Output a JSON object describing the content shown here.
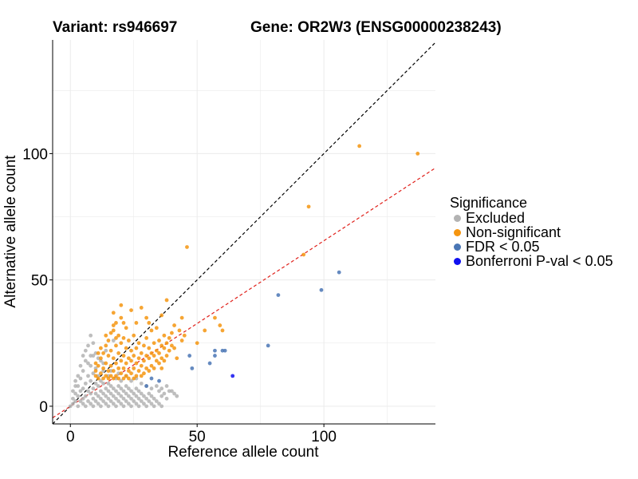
{
  "titles": {
    "variant": "Variant: rs946697",
    "gene": "Gene: OR2W3 (ENSG00000238243)"
  },
  "chart_data": {
    "type": "scatter",
    "xlabel": "Reference allele count",
    "ylabel": "Alternative allele count",
    "xlim": [
      -7,
      144
    ],
    "ylim": [
      -7,
      145
    ],
    "x_ticks": [
      0,
      50,
      100
    ],
    "y_ticks": [
      0,
      50,
      100
    ],
    "x_tick_labels": [
      "0",
      "50",
      "100"
    ],
    "y_tick_labels": [
      "0",
      "50",
      "100"
    ],
    "grid": true,
    "reference_lines": [
      {
        "name": "identity",
        "intercept": 0,
        "slope": 1.0,
        "color": "#000000",
        "dash": true
      },
      {
        "name": "fit",
        "intercept": 0,
        "slope": 0.655,
        "color": "#e0201a",
        "dash": true
      }
    ],
    "legend": {
      "title": "Significance",
      "position": "right",
      "entries": [
        {
          "label": "Excluded",
          "color": "#b3b3b3"
        },
        {
          "label": "Non-significant",
          "color": "#f5950f"
        },
        {
          "label": "FDR < 0.05",
          "color": "#4a76b5"
        },
        {
          "label": "Bonferroni P-val < 0.05",
          "color": "#1010f0"
        }
      ]
    },
    "series": [
      {
        "name": "Excluded",
        "color": "#b3b3b3",
        "points": [
          [
            0,
            0
          ],
          [
            1,
            1
          ],
          [
            1,
            3
          ],
          [
            2,
            2
          ],
          [
            2,
            5
          ],
          [
            3,
            0
          ],
          [
            3,
            4
          ],
          [
            3,
            8
          ],
          [
            4,
            2
          ],
          [
            4,
            6
          ],
          [
            4,
            11
          ],
          [
            5,
            1
          ],
          [
            5,
            3
          ],
          [
            5,
            7
          ],
          [
            5,
            14
          ],
          [
            6,
            0
          ],
          [
            6,
            4
          ],
          [
            6,
            9
          ],
          [
            6,
            18
          ],
          [
            7,
            2
          ],
          [
            7,
            6
          ],
          [
            7,
            12
          ],
          [
            7,
            24
          ],
          [
            8,
            1
          ],
          [
            8,
            5
          ],
          [
            8,
            10
          ],
          [
            8,
            16
          ],
          [
            8,
            28
          ],
          [
            9,
            0
          ],
          [
            9,
            3
          ],
          [
            9,
            7
          ],
          [
            9,
            13
          ],
          [
            9,
            20
          ],
          [
            10,
            2
          ],
          [
            10,
            5
          ],
          [
            10,
            9
          ],
          [
            10,
            15
          ],
          [
            10,
            21
          ],
          [
            11,
            1
          ],
          [
            11,
            4
          ],
          [
            11,
            8
          ],
          [
            11,
            12
          ],
          [
            12,
            0
          ],
          [
            12,
            3
          ],
          [
            12,
            6
          ],
          [
            12,
            10
          ],
          [
            12,
            18
          ],
          [
            13,
            2
          ],
          [
            13,
            5
          ],
          [
            13,
            9
          ],
          [
            13,
            14
          ],
          [
            14,
            1
          ],
          [
            14,
            4
          ],
          [
            14,
            7
          ],
          [
            14,
            22
          ],
          [
            15,
            0
          ],
          [
            15,
            3
          ],
          [
            15,
            6
          ],
          [
            15,
            9
          ],
          [
            16,
            2
          ],
          [
            16,
            5
          ],
          [
            16,
            8
          ],
          [
            17,
            1
          ],
          [
            17,
            4
          ],
          [
            17,
            7
          ],
          [
            17,
            26
          ],
          [
            18,
            0
          ],
          [
            18,
            3
          ],
          [
            18,
            6
          ],
          [
            19,
            2
          ],
          [
            19,
            5
          ],
          [
            19,
            8
          ],
          [
            20,
            1
          ],
          [
            20,
            4
          ],
          [
            20,
            7
          ],
          [
            21,
            0
          ],
          [
            21,
            3
          ],
          [
            21,
            6
          ],
          [
            22,
            2
          ],
          [
            22,
            5
          ],
          [
            22,
            8
          ],
          [
            23,
            1
          ],
          [
            23,
            4
          ],
          [
            23,
            7
          ],
          [
            24,
            0
          ],
          [
            24,
            3
          ],
          [
            24,
            6
          ],
          [
            25,
            2
          ],
          [
            25,
            5
          ],
          [
            26,
            1
          ],
          [
            26,
            4
          ],
          [
            26,
            7
          ],
          [
            27,
            0
          ],
          [
            27,
            3
          ],
          [
            27,
            6
          ],
          [
            28,
            2
          ],
          [
            28,
            5
          ],
          [
            29,
            1
          ],
          [
            29,
            4
          ],
          [
            30,
            0
          ],
          [
            30,
            3
          ],
          [
            31,
            2
          ],
          [
            31,
            5
          ],
          [
            32,
            1
          ],
          [
            32,
            4
          ],
          [
            33,
            0
          ],
          [
            33,
            3
          ],
          [
            34,
            2
          ],
          [
            35,
            1
          ],
          [
            35,
            6
          ],
          [
            36,
            0
          ],
          [
            36,
            4
          ],
          [
            37,
            5
          ],
          [
            38,
            3
          ],
          [
            40,
            6
          ],
          [
            42,
            4
          ],
          [
            2,
            8
          ],
          [
            3,
            12
          ],
          [
            4,
            16
          ],
          [
            6,
            22
          ],
          [
            5,
            20
          ],
          [
            1,
            6
          ],
          [
            2,
            10
          ],
          [
            7,
            17
          ],
          [
            8,
            20
          ],
          [
            9,
            25
          ],
          [
            11,
            19
          ],
          [
            13,
            17
          ],
          [
            15,
            12
          ],
          [
            16,
            14
          ],
          [
            18,
            11
          ],
          [
            19,
            13
          ],
          [
            20,
            10
          ],
          [
            22,
            12
          ],
          [
            24,
            10
          ],
          [
            26,
            11
          ],
          [
            28,
            9
          ],
          [
            30,
            8
          ],
          [
            32,
            7
          ],
          [
            34,
            8
          ],
          [
            36,
            7
          ],
          [
            38,
            8
          ],
          [
            39,
            6
          ],
          [
            41,
            5
          ]
        ]
      },
      {
        "name": "Non-significant",
        "color": "#f5950f",
        "points": [
          [
            10,
            12
          ],
          [
            10,
            14
          ],
          [
            11,
            11
          ],
          [
            11,
            16
          ],
          [
            12,
            13
          ],
          [
            12,
            19
          ],
          [
            13,
            11
          ],
          [
            13,
            15
          ],
          [
            13,
            21
          ],
          [
            14,
            12
          ],
          [
            14,
            17
          ],
          [
            14,
            24
          ],
          [
            15,
            11
          ],
          [
            15,
            14
          ],
          [
            15,
            20
          ],
          [
            15,
            26
          ],
          [
            16,
            12
          ],
          [
            16,
            16
          ],
          [
            16,
            22
          ],
          [
            17,
            11
          ],
          [
            17,
            14
          ],
          [
            17,
            19
          ],
          [
            17,
            30
          ],
          [
            17,
            37
          ],
          [
            18,
            12
          ],
          [
            18,
            17
          ],
          [
            18,
            24
          ],
          [
            18,
            33
          ],
          [
            19,
            11
          ],
          [
            19,
            15
          ],
          [
            19,
            21
          ],
          [
            19,
            28
          ],
          [
            20,
            13
          ],
          [
            20,
            18
          ],
          [
            20,
            25
          ],
          [
            20,
            35
          ],
          [
            21,
            11
          ],
          [
            21,
            15
          ],
          [
            21,
            20
          ],
          [
            21,
            27
          ],
          [
            22,
            12
          ],
          [
            22,
            17
          ],
          [
            22,
            23
          ],
          [
            22,
            31
          ],
          [
            23,
            11
          ],
          [
            23,
            14
          ],
          [
            23,
            19
          ],
          [
            23,
            26
          ],
          [
            24,
            13
          ],
          [
            24,
            18
          ],
          [
            24,
            22
          ],
          [
            25,
            11
          ],
          [
            25,
            15
          ],
          [
            25,
            20
          ],
          [
            25,
            28
          ],
          [
            26,
            12
          ],
          [
            26,
            17
          ],
          [
            26,
            23
          ],
          [
            27,
            14
          ],
          [
            27,
            19
          ],
          [
            27,
            25
          ],
          [
            28,
            12
          ],
          [
            28,
            16
          ],
          [
            28,
            21
          ],
          [
            29,
            13
          ],
          [
            29,
            18
          ],
          [
            29,
            24
          ],
          [
            30,
            15
          ],
          [
            30,
            20
          ],
          [
            30,
            27
          ],
          [
            31,
            14
          ],
          [
            31,
            19
          ],
          [
            31,
            23
          ],
          [
            32,
            16
          ],
          [
            32,
            21
          ],
          [
            32,
            30
          ],
          [
            33,
            15
          ],
          [
            33,
            20
          ],
          [
            33,
            25
          ],
          [
            34,
            18
          ],
          [
            34,
            22
          ],
          [
            35,
            17
          ],
          [
            35,
            21
          ],
          [
            35,
            26
          ],
          [
            36,
            15
          ],
          [
            36,
            19
          ],
          [
            36,
            24
          ],
          [
            37,
            18
          ],
          [
            37,
            23
          ],
          [
            37,
            28
          ],
          [
            38,
            20
          ],
          [
            38,
            25
          ],
          [
            38,
            42
          ],
          [
            39,
            22
          ],
          [
            39,
            27
          ],
          [
            40,
            24
          ],
          [
            40,
            29
          ],
          [
            41,
            23
          ],
          [
            42,
            19
          ],
          [
            43,
            30
          ],
          [
            44,
            35
          ],
          [
            46,
            63
          ],
          [
            50,
            25
          ],
          [
            53,
            30
          ],
          [
            57,
            35
          ],
          [
            59,
            32
          ],
          [
            60,
            30
          ],
          [
            94,
            79
          ],
          [
            92,
            60
          ],
          [
            114,
            103
          ],
          [
            137,
            100
          ],
          [
            28,
            39
          ],
          [
            31,
            33
          ],
          [
            34,
            31
          ],
          [
            36,
            36
          ],
          [
            26,
            33
          ],
          [
            24,
            38
          ],
          [
            30,
            35
          ],
          [
            20,
            40
          ],
          [
            17,
            32
          ],
          [
            21,
            33
          ],
          [
            18,
            27
          ],
          [
            14,
            28
          ],
          [
            16,
            29
          ],
          [
            12,
            23
          ],
          [
            11,
            21
          ],
          [
            10,
            17
          ],
          [
            41,
            32
          ],
          [
            44,
            26
          ],
          [
            45,
            28
          ]
        ]
      },
      {
        "name": "FDR < 0.05",
        "color": "#4a76b5",
        "points": [
          [
            32,
            11
          ],
          [
            35,
            10
          ],
          [
            30,
            8
          ],
          [
            47,
            20
          ],
          [
            48,
            15
          ],
          [
            55,
            17
          ],
          [
            57,
            20
          ],
          [
            57,
            22
          ],
          [
            60,
            22
          ],
          [
            61,
            22
          ],
          [
            78,
            24
          ],
          [
            82,
            44
          ],
          [
            99,
            46
          ],
          [
            106,
            53
          ]
        ]
      },
      {
        "name": "Bonferroni P-val < 0.05",
        "color": "#1010f0",
        "points": [
          [
            64,
            12
          ]
        ]
      }
    ]
  }
}
